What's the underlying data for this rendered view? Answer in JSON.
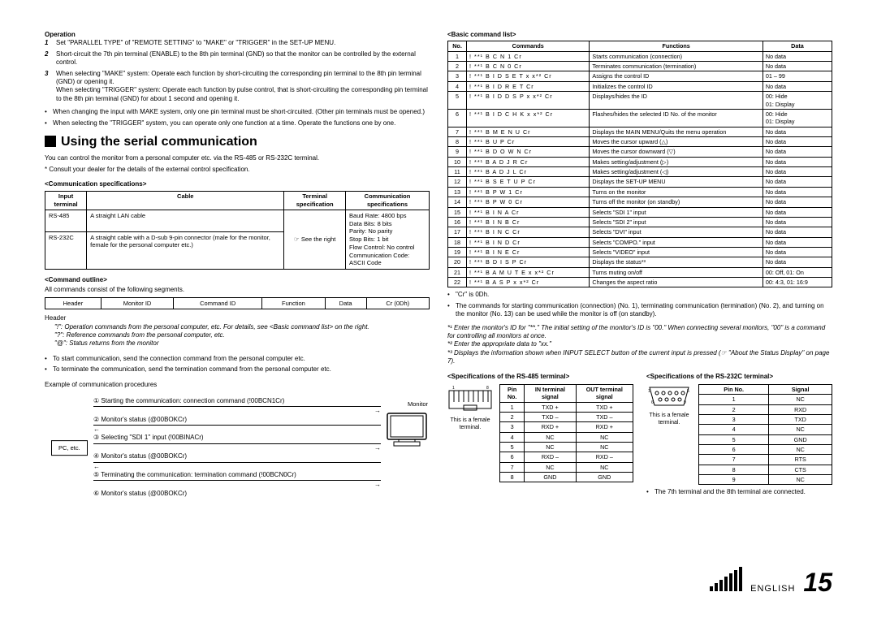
{
  "left": {
    "operation_head": "Operation",
    "steps": [
      {
        "n": "1",
        "t": "Set \"PARALLEL TYPE\" of \"REMOTE SETTING\" to \"MAKE\" or \"TRIGGER\" in the SET-UP MENU."
      },
      {
        "n": "2",
        "t": "Short-circuit the 7th pin terminal (ENABLE) to the 8th pin terminal (GND) so that the monitor can be controlled by the external control."
      },
      {
        "n": "3",
        "t": "When selecting \"MAKE\" system: Operate each function by short-circuiting the corresponding pin terminal to the 8th pin terminal (GND) or opening it.\nWhen selecting \"TRIGGER\" system: Operate each function by pulse control, that is short-circuiting the corresponding pin terminal to the 8th pin terminal (GND) for about 1 second and opening it."
      }
    ],
    "notes": [
      "When changing the input with MAKE system, only one pin terminal must be short-circuited. (Other pin terminals must be opened.)",
      "When selecting the \"TRIGGER\" system, you can operate only one function at a time. Operate the functions one by one."
    ],
    "serial_title": "Using the serial communication",
    "serial_intro1": "You can control the monitor from a personal computer etc. via the RS-485 or RS-232C terminal.",
    "serial_intro2": "* Consult your dealer for the details of the external control specification.",
    "comm_spec_head": "<Communication specifications>",
    "comm_spec_table": {
      "headers": [
        "Input terminal",
        "Cable",
        "Terminal specification",
        "Communication specifications"
      ],
      "rows": [
        [
          "RS-485",
          "A straight LAN cable",
          "",
          "Baud Rate: 4800 bps\nData Bits: 8 bits\nParity: No parity\nStop Bits: 1 bit\nFlow Control: No control\nCommunication Code: ASCII Code"
        ],
        [
          "RS-232C",
          "A straight cable with a D-sub 9-pin connector (male for the monitor, female for the personal computer etc.)",
          "☞ See the right",
          ""
        ]
      ]
    },
    "cmd_outline_head": "<Command outline>",
    "cmd_outline_sub": "All commands consist of the following segments.",
    "cmd_outline_cols": [
      "Header",
      "Monitor ID",
      "Command ID",
      "Function",
      "Data",
      "Cr (0Dh)"
    ],
    "header_label": "Header",
    "header_lines": [
      "\"!\": Operation commands from the personal computer, etc. For details, see <Basic command list> on the right.",
      "\"?\": Reference commands from the personal computer, etc.",
      "\"@\": Status returns from the monitor"
    ],
    "start_term": [
      "To start communication, send the connection command from the personal computer etc.",
      "To terminate the communication, send the termination command from the personal computer etc."
    ],
    "example_head": "Example of communication procedures",
    "pc_label": "PC, etc.",
    "monitor_label": "Monitor",
    "proc": [
      "① Starting the communication: connection command (!00BCN1Cr)",
      "② Monitor's status (@00BOKCr)",
      "③ Selecting \"SDI 1\" input (!00BINACr)",
      "④ Monitor's status (@00BOKCr)",
      "⑤ Terminating the communication: termination command (!00BCN0Cr)",
      "⑥ Monitor's status (@00BOKCr)"
    ]
  },
  "right": {
    "basic_head": "<Basic command list>",
    "cmd_headers": [
      "No.",
      "Commands",
      "Functions",
      "Data"
    ],
    "cmds": [
      [
        "1",
        "!  **¹ B  C  N  1  Cr",
        "Starts communication (connection)",
        "No data"
      ],
      [
        "2",
        "!  **¹ B  C  N  0  Cr",
        "Terminates communication (termination)",
        "No data"
      ],
      [
        "3",
        "!  **¹ B  I  D  S  E  T  x  x*² Cr",
        "Assigns the control ID",
        "01 – 99"
      ],
      [
        "4",
        "!  **¹ B  I  D  R  E  T  Cr",
        "Initializes the control ID",
        "No data"
      ],
      [
        "5",
        "!  **¹ B  I  D  D  S  P  x  x*² Cr",
        "Displays/hides the ID",
        "00: Hide\n01: Display"
      ],
      [
        "6",
        "!  **¹ B  I  D  C  H  K  x  x*² Cr",
        "Flashes/hides the selected ID No. of the monitor",
        "00: Hide\n01: Display"
      ],
      [
        "7",
        "!  **¹ B  M  E  N  U  Cr",
        "Displays the MAIN MENU/Quits the menu operation",
        "No data"
      ],
      [
        "8",
        "!  **¹ B  U  P  Cr",
        "Moves the cursor upward (△)",
        "No data"
      ],
      [
        "9",
        "!  **¹ B  D  O  W  N  Cr",
        "Moves the cursor downward (▽)",
        "No data"
      ],
      [
        "10",
        "!  **¹ B  A  D  J  R  Cr",
        "Makes setting/adjustment (▷)",
        "No data"
      ],
      [
        "11",
        "!  **¹ B  A  D  J  L  Cr",
        "Makes setting/adjustment (◁)",
        "No data"
      ],
      [
        "12",
        "!  **¹ B  S  E  T  U  P  Cr",
        "Displays the SET-UP MENU",
        "No data"
      ],
      [
        "13",
        "!  **¹ B  P  W  1  Cr",
        "Turns on the monitor",
        "No data"
      ],
      [
        "14",
        "!  **¹ B  P  W  0  Cr",
        "Turns off the monitor (on standby)",
        "No data"
      ],
      [
        "15",
        "!  **¹ B  I  N  A  Cr",
        "Selects \"SDI 1\" input",
        "No data"
      ],
      [
        "16",
        "!  **¹ B  I  N  B  Cr",
        "Selects \"SDI 2\" input",
        "No data"
      ],
      [
        "17",
        "!  **¹ B  I  N  C  Cr",
        "Selects \"DVI\" input",
        "No data"
      ],
      [
        "18",
        "!  **¹ B  I  N  D  Cr",
        "Selects \"COMPO.\" input",
        "No data"
      ],
      [
        "19",
        "!  **¹ B  I  N  E  Cr",
        "Selects \"VIDEO\" input",
        "No data"
      ],
      [
        "20",
        "!  **¹ B  D  I  S  P  Cr",
        "Displays the status*³",
        "No data"
      ],
      [
        "21",
        "!  **¹ B  A  M  U  T  E  x  x*² Cr",
        "Turns muting on/off",
        "00: Off, 01: On"
      ],
      [
        "22",
        "!  **¹ B  A  S  P  x  x*² Cr",
        "Changes the aspect ratio",
        "00: 4:3, 01: 16:9"
      ]
    ],
    "cr_note": "\"Cr\" is 0Dh.",
    "cmd_note": "The commands for starting communication (connection) (No. 1), terminating communication (termination) (No. 2), and turning on the monitor (No. 13) can be used while the monitor is off (on standby).",
    "foot1": "*¹ Enter the monitor's ID for \"**.\" The initial setting of the monitor's ID is \"00.\" When connecting several monitors, \"00\" is a command for controlling all monitors at once.",
    "foot2": "*² Enter the appropriate data to \"xx.\"",
    "foot3": "*³ Displays the information shown when INPUT SELECT button of the current input is pressed (☞ \"About the Status Display\" on page 7).",
    "rs485_head": "<Specifications of the RS-485 terminal>",
    "rs232_head": "<Specifications of the RS-232C terminal>",
    "female_note": "This is a female terminal.",
    "rs485": {
      "headers": [
        "Pin No.",
        "IN terminal signal",
        "OUT terminal signal"
      ],
      "rows": [
        [
          "1",
          "TXD +",
          "TXD +"
        ],
        [
          "2",
          "TXD –",
          "TXD –"
        ],
        [
          "3",
          "RXD +",
          "RXD +"
        ],
        [
          "4",
          "NC",
          "NC"
        ],
        [
          "5",
          "NC",
          "NC"
        ],
        [
          "6",
          "RXD –",
          "RXD –"
        ],
        [
          "7",
          "NC",
          "NC"
        ],
        [
          "8",
          "GND",
          "GND"
        ]
      ]
    },
    "rs232": {
      "headers": [
        "Pin No.",
        "Signal"
      ],
      "rows": [
        [
          "1",
          "NC"
        ],
        [
          "2",
          "RXD"
        ],
        [
          "3",
          "TXD"
        ],
        [
          "4",
          "NC"
        ],
        [
          "5",
          "GND"
        ],
        [
          "6",
          "NC"
        ],
        [
          "7",
          "RTS"
        ],
        [
          "8",
          "CTS"
        ],
        [
          "9",
          "NC"
        ]
      ]
    },
    "rs232_note": "The 7th terminal and the 8th terminal are connected."
  },
  "footer": {
    "lang": "ENGLISH",
    "page": "15"
  }
}
